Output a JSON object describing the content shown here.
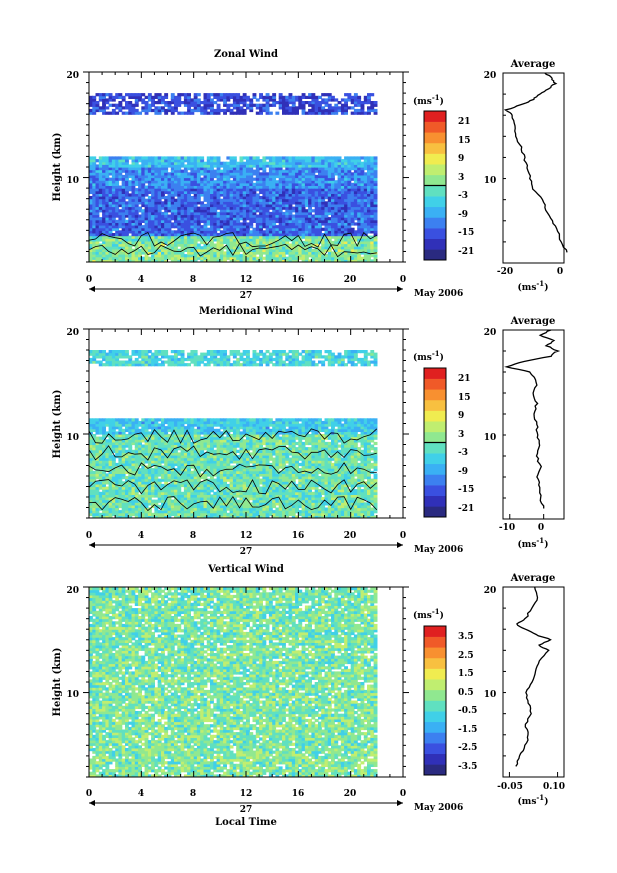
{
  "chart_data": [
    {
      "type": "heatmap",
      "title": "Zonal Wind",
      "ylabel": "Height (km)",
      "xlabel": "",
      "x_ticks": [
        "0",
        "4",
        "8",
        "12",
        "16",
        "20",
        "0"
      ],
      "y_ticks": [
        "10",
        "20"
      ],
      "xlim": [
        0,
        24
      ],
      "ylim": [
        2,
        20
      ],
      "date_label": "27",
      "month_label": "May 2006",
      "colorbar": {
        "unit": "(ms⁻¹)",
        "ticks": [
          "21",
          "15",
          "9",
          "3",
          "-3",
          "-9",
          "-15",
          "-21"
        ],
        "range": [
          -24,
          24
        ],
        "contour_level": 0
      },
      "field": {
        "t_end": 22,
        "surface": {
          "top": 4.0,
          "value": 3
        },
        "layers": [
          {
            "z0": 2.0,
            "z1": 4.5,
            "value": 0
          },
          {
            "z0": 4.5,
            "z1": 9.0,
            "value": -14
          },
          {
            "z0": 9.0,
            "z1": 11.0,
            "value": -11
          },
          {
            "z0": 11.0,
            "z1": 12.0,
            "value": -7
          },
          {
            "z0": 16.0,
            "z1": 18.0,
            "value": -16
          }
        ]
      },
      "average": {
        "title": "Average",
        "unit": "(ms⁻¹)",
        "x_ticks": [
          "-20",
          "0"
        ],
        "xlim": [
          -20,
          0
        ],
        "y_ticks": [
          "10",
          "20"
        ],
        "profile": [
          [
            3,
            1
          ],
          [
            4,
            -1
          ],
          [
            5,
            -2
          ],
          [
            6,
            -4
          ],
          [
            7,
            -6
          ],
          [
            8,
            -7
          ],
          [
            9,
            -10
          ],
          [
            10,
            -11
          ],
          [
            11,
            -12
          ],
          [
            12,
            -13
          ],
          [
            13,
            -14
          ],
          [
            14,
            -16
          ],
          [
            15,
            -16
          ],
          [
            16,
            -17
          ],
          [
            16.5,
            -19
          ],
          [
            17,
            -14
          ],
          [
            17.5,
            -10
          ],
          [
            18,
            -8
          ],
          [
            18.5,
            -5
          ],
          [
            19,
            -3
          ],
          [
            19.5,
            -4
          ],
          [
            20,
            -6
          ]
        ]
      }
    },
    {
      "type": "heatmap",
      "title": "Meridional Wind",
      "ylabel": "Height (km)",
      "xlabel": "",
      "x_ticks": [
        "0",
        "4",
        "8",
        "12",
        "16",
        "20",
        "0"
      ],
      "y_ticks": [
        "10",
        "20"
      ],
      "xlim": [
        0,
        24
      ],
      "ylim": [
        2,
        20
      ],
      "date_label": "27",
      "month_label": "May 2006",
      "colorbar": {
        "unit": "(ms⁻¹)",
        "ticks": [
          "21",
          "15",
          "9",
          "3",
          "-3",
          "-9",
          "-15",
          "-21"
        ],
        "range": [
          -24,
          24
        ],
        "contour_level": 0
      },
      "field": {
        "t_end": 22,
        "surface": {
          "top": 10.0,
          "value": 1
        },
        "layers": [
          {
            "z0": 2.0,
            "z1": 10.0,
            "value": -2
          },
          {
            "z0": 10.0,
            "z1": 11.5,
            "value": -6
          },
          {
            "z0": 16.5,
            "z1": 18.0,
            "value": -4
          }
        ]
      },
      "average": {
        "title": "Average",
        "unit": "(ms⁻¹)",
        "x_ticks": [
          "-10",
          "0"
        ],
        "xlim": [
          -12,
          6
        ],
        "y_ticks": [
          "10",
          "20"
        ],
        "profile": [
          [
            3,
            0
          ],
          [
            4,
            -1
          ],
          [
            5,
            -1
          ],
          [
            6,
            -2
          ],
          [
            7,
            -1
          ],
          [
            8,
            -2
          ],
          [
            9,
            -1
          ],
          [
            10,
            -2
          ],
          [
            11,
            -2
          ],
          [
            12,
            -3
          ],
          [
            13,
            -2
          ],
          [
            14,
            -3
          ],
          [
            15,
            -2
          ],
          [
            16,
            -4
          ],
          [
            16.5,
            -11
          ],
          [
            17,
            -6
          ],
          [
            17.5,
            2
          ],
          [
            18,
            4
          ],
          [
            18.5,
            1
          ],
          [
            19,
            3
          ],
          [
            19.5,
            -1
          ],
          [
            20,
            2
          ]
        ]
      }
    },
    {
      "type": "heatmap",
      "title": "Vertical Wind",
      "ylabel": "Height (km)",
      "xlabel": "Local Time",
      "x_ticks": [
        "0",
        "4",
        "8",
        "12",
        "16",
        "20",
        "0"
      ],
      "y_ticks": [
        "10",
        "20"
      ],
      "xlim": [
        0,
        24
      ],
      "ylim": [
        2,
        20
      ],
      "date_label": "27",
      "month_label": "May 2006",
      "colorbar": {
        "unit": "(ms⁻¹)",
        "ticks": [
          "3.5",
          "2.5",
          "1.5",
          "0.5",
          "-0.5",
          "-1.5",
          "-2.5",
          "-3.5"
        ],
        "range": [
          -4,
          4
        ],
        "contour_level": null
      },
      "field": {
        "t_end": 22,
        "surface": null,
        "layers": [
          {
            "z0": 2.0,
            "z1": 12.0,
            "value": 0.1
          },
          {
            "z0": 12.0,
            "z1": 20.0,
            "value": 0.0
          }
        ]
      },
      "average": {
        "title": "Average",
        "unit": "(ms⁻¹)",
        "x_ticks": [
          "-0.05",
          "0.10"
        ],
        "xlim": [
          -0.07,
          0.12
        ],
        "y_ticks": [
          "10",
          "20"
        ],
        "profile": [
          [
            3,
            -0.03
          ],
          [
            4,
            -0.02
          ],
          [
            5,
            0.0
          ],
          [
            6,
            0.01
          ],
          [
            7,
            0.0
          ],
          [
            8,
            0.02
          ],
          [
            9,
            0.01
          ],
          [
            10,
            0.0
          ],
          [
            11,
            0.02
          ],
          [
            12,
            0.03
          ],
          [
            13,
            0.04
          ],
          [
            14,
            0.07
          ],
          [
            14.5,
            0.04
          ],
          [
            15,
            0.08
          ],
          [
            15.5,
            0.03
          ],
          [
            16,
            0.0
          ],
          [
            16.5,
            -0.03
          ],
          [
            17,
            0.0
          ],
          [
            18,
            0.02
          ],
          [
            19,
            0.04
          ],
          [
            20,
            0.03
          ]
        ]
      }
    }
  ]
}
